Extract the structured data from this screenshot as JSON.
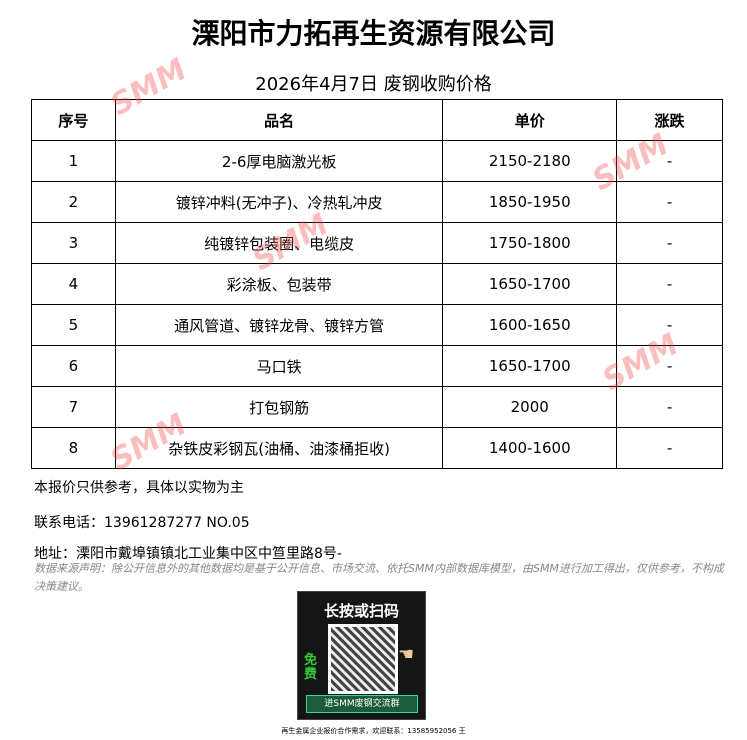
{
  "title": "溧阳市力拓再生资源有限公司",
  "subtitle": "2026年4月7日 废钢收购价格",
  "table": {
    "headers": [
      "序号",
      "品名",
      "单价",
      "涨跌"
    ],
    "rows": [
      [
        "1",
        "2-6厚电脑激光板",
        "2150-2180",
        "-"
      ],
      [
        "2",
        "镀锌冲料(无冲子)、冷热轧冲皮",
        "1850-1950",
        "-"
      ],
      [
        "3",
        "纯镀锌包装圈、电缆皮",
        "1750-1800",
        "-"
      ],
      [
        "4",
        "彩涂板、包装带",
        "1650-1700",
        "-"
      ],
      [
        "5",
        "通风管道、镀锌龙骨、镀锌方管",
        "1600-1650",
        "-"
      ],
      [
        "6",
        "马口铁",
        "1650-1700",
        "-"
      ],
      [
        "7",
        "打包钢筋",
        "2000",
        "-"
      ],
      [
        "8",
        "杂铁皮彩钢瓦(油桶、油漆桶拒收)",
        "1400-1600",
        "-"
      ]
    ]
  },
  "notes": {
    "reference": "本报价只供参考，具体以实物为主",
    "contact": "联系电话：13961287277  NO.05",
    "address": "地址：溧阳市戴埠镇镇北工业集中区中笪里路8号-"
  },
  "disclaimer": "数据来源声明：除公开信息外的其他数据均是基于公开信息、市场交流、依托SMM内部数据库模型，由SMM进行加工得出，仅供参考，不构成决策建议。",
  "qr": {
    "title": "长按或扫码",
    "free": "免费",
    "button": "进SMM废钢交流群"
  },
  "footer": "再生金属企业报价合作需求，欢迎联系：13585952056 王",
  "watermark": "SMM"
}
